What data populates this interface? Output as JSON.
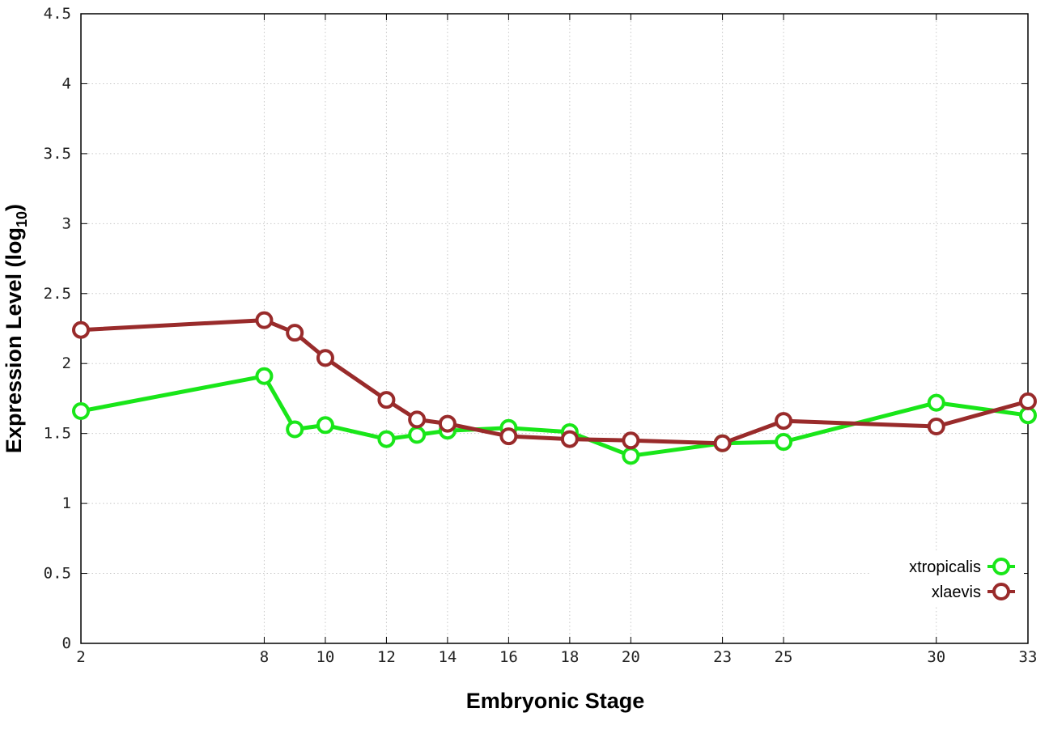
{
  "chart_data": {
    "type": "line",
    "xlabel": "Embryonic Stage",
    "ylabel_main": "Expression Level (log",
    "ylabel_sub": "10",
    "ylabel_end": ")",
    "xlim": [
      2,
      33
    ],
    "ylim": [
      0,
      4.5
    ],
    "xticks": [
      2,
      8,
      10,
      12,
      14,
      16,
      18,
      20,
      23,
      25,
      30,
      33
    ],
    "yticks": [
      0,
      0.5,
      1,
      1.5,
      2,
      2.5,
      3,
      3.5,
      4,
      4.5
    ],
    "ytick_labels": [
      "0",
      "0.5",
      "1",
      "1.5",
      "2",
      "2.5",
      "3",
      "3.5",
      "4",
      "4.5"
    ],
    "grid": true,
    "legend_position": "bottom-right",
    "x": [
      2,
      8,
      9,
      10,
      12,
      13,
      14,
      16,
      18,
      20,
      23,
      25,
      30,
      33
    ],
    "series": [
      {
        "name": "xtropicalis",
        "color": "#19e619",
        "values": [
          1.66,
          1.91,
          1.53,
          1.56,
          1.46,
          1.49,
          1.52,
          1.54,
          1.51,
          1.34,
          1.43,
          1.44,
          1.72,
          1.63
        ]
      },
      {
        "name": "xlaevis",
        "color": "#992b2b",
        "values": [
          2.24,
          2.31,
          2.22,
          2.04,
          1.74,
          1.6,
          1.57,
          1.48,
          1.46,
          1.45,
          1.43,
          1.59,
          1.55,
          1.73
        ]
      }
    ]
  }
}
